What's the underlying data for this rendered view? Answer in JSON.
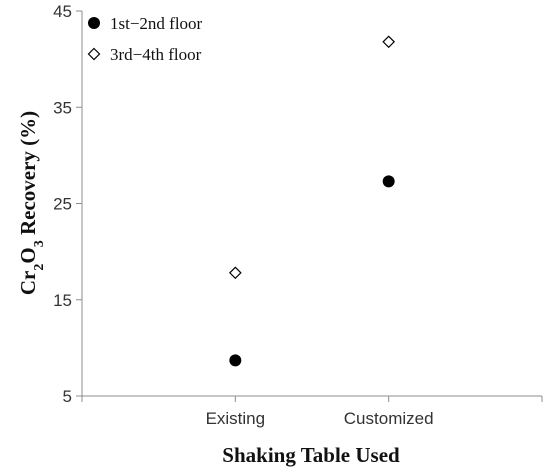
{
  "chart_data": {
    "type": "scatter",
    "categories": [
      "Existing",
      "Customized"
    ],
    "series": [
      {
        "name": "1st−2nd floor",
        "marker": "filled-circle",
        "color": "#000000",
        "values": [
          8.7,
          27.3
        ]
      },
      {
        "name": "3rd−4th floor",
        "marker": "open-diamond",
        "color": "#000000",
        "values": [
          17.8,
          41.8
        ]
      }
    ],
    "xlabel": "Shaking Table Used",
    "ylabel": {
      "prefix": "Cr",
      "sub1": "2",
      "mid": "O",
      "sub2": "3",
      "suffix": " Recovery  (%)"
    },
    "ylim": [
      5,
      45
    ],
    "yticks": [
      5,
      15,
      25,
      35,
      45
    ],
    "grid": false,
    "legend_position": "top-left"
  }
}
